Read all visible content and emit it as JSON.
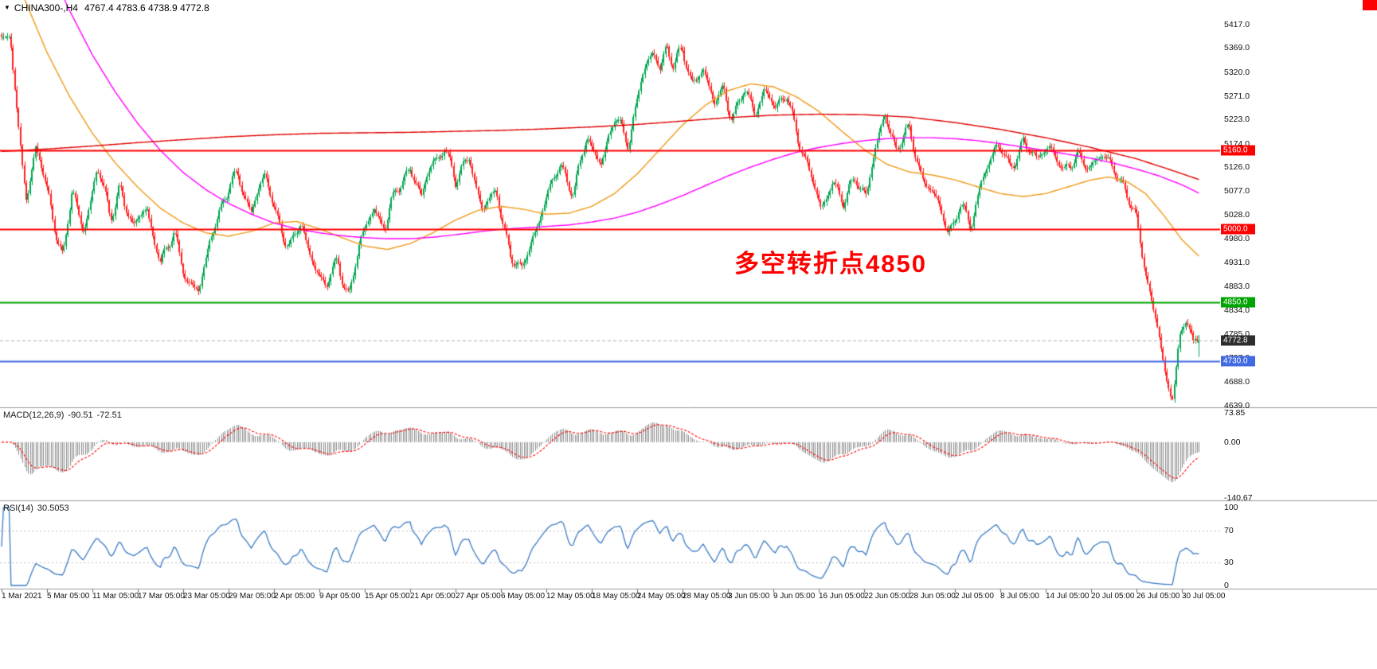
{
  "header": {
    "dropdown_icon": "▼",
    "symbol_period": "CHINA300-,H4",
    "ohlc_text": "4767.4 4783.6 4738.9 4772.8"
  },
  "annotation": {
    "text": "多空转折点4850",
    "color": "#ff0000"
  },
  "corner_marker_color": "#ff0000",
  "chart_data": {
    "type": "candlestick",
    "symbol": "CHINA300-",
    "timeframe": "H4",
    "current_ohlc": {
      "open": 4767.4,
      "high": 4783.6,
      "low": 4738.9,
      "close": 4772.8
    },
    "colors": {
      "up": "#00a651",
      "down": "#ff2020",
      "ma_fast": "#f09a18",
      "ma_mid": "#ff00ff",
      "ma_slow": "#e00000",
      "macd_hist": "#8a8a8a",
      "macd_signal": "#ff0000",
      "rsi_line": "#3b7cc4",
      "rsi_levels": "#c0c0c0",
      "separator": "#9b9b9b"
    },
    "ylim": [
      4636,
      5467
    ],
    "y_ticks": [
      5417.0,
      5369.0,
      5320.0,
      5271.0,
      5223.0,
      5174.0,
      5126.0,
      5077.0,
      5028.0,
      4980.0,
      4931.0,
      4883.0,
      4834.0,
      4785.0,
      4737.0,
      4688.0,
      4639.0
    ],
    "x_tick_labels": [
      "1 Mar 2021",
      "5 Mar 05:00",
      "11 Mar 05:00",
      "17 Mar 05:00",
      "23 Mar 05:00",
      "29 Mar 05:00",
      "2 Apr 05:00",
      "9 Apr 05:00",
      "15 Apr 05:00",
      "21 Apr 05:00",
      "27 Apr 05:00",
      "6 May 05:00",
      "12 May 05:00",
      "18 May 05:00",
      "24 May 05:00",
      "28 May 05:00",
      "3 Jun 05:00",
      "9 Jun 05:00",
      "16 Jun 05:00",
      "22 Jun 05:00",
      "28 Jun 05:00",
      "2 Jul 05:00",
      "8 Jul 05:00",
      "14 Jul 05:00",
      "20 Jul 05:00",
      "26 Jul 05:00",
      "30 Jul 05:00"
    ],
    "bars_per_tick": 24,
    "visible_bars": 634,
    "levels": [
      {
        "price": 5160.0,
        "label": "5160.0",
        "color": "#ff0000"
      },
      {
        "price": 5000.0,
        "label": "5000.0",
        "color": "#ff0000"
      },
      {
        "price": 4850.0,
        "label": "4850.0",
        "color": "#00a400"
      },
      {
        "price": 4730.0,
        "label": "4730.0",
        "color": "#4169e1"
      }
    ],
    "current_price": {
      "price": 4772.8,
      "label": "4772.8",
      "badge_bg": "#2e2e2e",
      "line_color": "#b0b0b0"
    },
    "price_path_anchors": [
      [
        0,
        5425
      ],
      [
        0.15,
        5435
      ],
      [
        0.35,
        5230
      ],
      [
        0.55,
        5060
      ],
      [
        0.75,
        5160
      ],
      [
        1.05,
        5065
      ],
      [
        1.35,
        4935
      ],
      [
        1.55,
        5075
      ],
      [
        1.8,
        5000
      ],
      [
        2.1,
        5120
      ],
      [
        2.4,
        5025
      ],
      [
        2.6,
        5090
      ],
      [
        2.9,
        4995
      ],
      [
        3.2,
        5050
      ],
      [
        3.5,
        4925
      ],
      [
        3.8,
        4990
      ],
      [
        4.1,
        4895
      ],
      [
        4.35,
        4862
      ],
      [
        4.6,
        4990
      ],
      [
        4.9,
        5060
      ],
      [
        5.2,
        5110
      ],
      [
        5.5,
        5040
      ],
      [
        5.8,
        5105
      ],
      [
        6.1,
        5020
      ],
      [
        6.35,
        4955
      ],
      [
        6.6,
        5010
      ],
      [
        6.9,
        4925
      ],
      [
        7.15,
        4875
      ],
      [
        7.4,
        4940
      ],
      [
        7.65,
        4862
      ],
      [
        7.9,
        4970
      ],
      [
        8.2,
        5050
      ],
      [
        8.45,
        5000
      ],
      [
        8.7,
        5080
      ],
      [
        9,
        5130
      ],
      [
        9.25,
        5060
      ],
      [
        9.5,
        5140
      ],
      [
        9.75,
        5170
      ],
      [
        10,
        5090
      ],
      [
        10.3,
        5155
      ],
      [
        10.6,
        5030
      ],
      [
        10.9,
        5080
      ],
      [
        11.2,
        4950
      ],
      [
        11.45,
        4905
      ],
      [
        11.7,
        4990
      ],
      [
        12,
        5060
      ],
      [
        12.3,
        5130
      ],
      [
        12.6,
        5080
      ],
      [
        12.9,
        5180
      ],
      [
        13.2,
        5140
      ],
      [
        13.5,
        5220
      ],
      [
        13.8,
        5180
      ],
      [
        14.1,
        5310
      ],
      [
        14.35,
        5355
      ],
      [
        14.5,
        5330
      ],
      [
        14.65,
        5385
      ],
      [
        14.8,
        5330
      ],
      [
        15,
        5360
      ],
      [
        15.2,
        5300
      ],
      [
        15.45,
        5330
      ],
      [
        15.7,
        5245
      ],
      [
        15.9,
        5295
      ],
      [
        16.1,
        5225
      ],
      [
        16.35,
        5280
      ],
      [
        16.6,
        5235
      ],
      [
        16.8,
        5295
      ],
      [
        17.05,
        5235
      ],
      [
        17.3,
        5280
      ],
      [
        17.55,
        5185
      ],
      [
        17.8,
        5105
      ],
      [
        18.05,
        5050
      ],
      [
        18.3,
        5095
      ],
      [
        18.55,
        5045
      ],
      [
        18.8,
        5115
      ],
      [
        19.05,
        5065
      ],
      [
        19.3,
        5180
      ],
      [
        19.45,
        5240
      ],
      [
        19.7,
        5165
      ],
      [
        20,
        5195
      ],
      [
        20.3,
        5105
      ],
      [
        20.6,
        5055
      ],
      [
        20.85,
        4990
      ],
      [
        21.1,
        5055
      ],
      [
        21.35,
        4995
      ],
      [
        21.6,
        5110
      ],
      [
        21.9,
        5170
      ],
      [
        22.2,
        5125
      ],
      [
        22.5,
        5180
      ],
      [
        22.8,
        5135
      ],
      [
        23.1,
        5180
      ],
      [
        23.4,
        5105
      ],
      [
        23.7,
        5155
      ],
      [
        24,
        5125
      ],
      [
        24.4,
        5150
      ],
      [
        24.7,
        5085
      ],
      [
        25,
        5015
      ],
      [
        25.2,
        4920
      ],
      [
        25.45,
        4800
      ],
      [
        25.65,
        4685
      ],
      [
        25.78,
        4655
      ],
      [
        25.95,
        4780
      ],
      [
        26.1,
        4828
      ],
      [
        26.25,
        4752
      ],
      [
        26.4,
        4772.8
      ]
    ],
    "moving_averages": [
      {
        "name": "ma-fast-orange",
        "color": "#f09a18",
        "anchors": [
          [
            0,
            5570
          ],
          [
            0.5,
            5470
          ],
          [
            1,
            5360
          ],
          [
            1.5,
            5270
          ],
          [
            2,
            5195
          ],
          [
            2.5,
            5135
          ],
          [
            3,
            5085
          ],
          [
            3.5,
            5042
          ],
          [
            4,
            5012
          ],
          [
            4.5,
            4992
          ],
          [
            5,
            4985
          ],
          [
            5.5,
            4995
          ],
          [
            6,
            5012
          ],
          [
            6.5,
            5015
          ],
          [
            7,
            5000
          ],
          [
            7.5,
            4982
          ],
          [
            8,
            4965
          ],
          [
            8.5,
            4958
          ],
          [
            9,
            4970
          ],
          [
            9.5,
            4992
          ],
          [
            10,
            5018
          ],
          [
            10.5,
            5038
          ],
          [
            11,
            5046
          ],
          [
            11.5,
            5040
          ],
          [
            12,
            5030
          ],
          [
            12.5,
            5032
          ],
          [
            13,
            5046
          ],
          [
            13.5,
            5072
          ],
          [
            14,
            5112
          ],
          [
            14.5,
            5162
          ],
          [
            15,
            5212
          ],
          [
            15.5,
            5252
          ],
          [
            16,
            5282
          ],
          [
            16.5,
            5296
          ],
          [
            17,
            5290
          ],
          [
            17.5,
            5270
          ],
          [
            18,
            5240
          ],
          [
            18.5,
            5200
          ],
          [
            19,
            5162
          ],
          [
            19.5,
            5132
          ],
          [
            20,
            5116
          ],
          [
            20.5,
            5110
          ],
          [
            21,
            5100
          ],
          [
            21.5,
            5086
          ],
          [
            22,
            5072
          ],
          [
            22.5,
            5066
          ],
          [
            23,
            5072
          ],
          [
            23.5,
            5086
          ],
          [
            24,
            5100
          ],
          [
            24.4,
            5106
          ],
          [
            24.8,
            5096
          ],
          [
            25.2,
            5072
          ],
          [
            25.6,
            5028
          ],
          [
            26,
            4978
          ],
          [
            26.4,
            4942
          ]
        ]
      },
      {
        "name": "ma-mid-magenta",
        "color": "#ff00ff",
        "anchors": [
          [
            0,
            5790
          ],
          [
            0.5,
            5660
          ],
          [
            1,
            5545
          ],
          [
            1.5,
            5445
          ],
          [
            2,
            5355
          ],
          [
            2.5,
            5280
          ],
          [
            3,
            5215
          ],
          [
            3.5,
            5160
          ],
          [
            4,
            5115
          ],
          [
            4.5,
            5080
          ],
          [
            5,
            5052
          ],
          [
            5.5,
            5030
          ],
          [
            6,
            5012
          ],
          [
            6.5,
            5000
          ],
          [
            7,
            4992
          ],
          [
            7.5,
            4986
          ],
          [
            8,
            4982
          ],
          [
            8.5,
            4980
          ],
          [
            9,
            4980
          ],
          [
            9.5,
            4983
          ],
          [
            10,
            4988
          ],
          [
            10.5,
            4994
          ],
          [
            11,
            4999
          ],
          [
            11.5,
            5002
          ],
          [
            12,
            5005
          ],
          [
            12.5,
            5008
          ],
          [
            13,
            5014
          ],
          [
            13.5,
            5022
          ],
          [
            14,
            5034
          ],
          [
            14.5,
            5050
          ],
          [
            15,
            5068
          ],
          [
            15.5,
            5088
          ],
          [
            16,
            5108
          ],
          [
            16.5,
            5126
          ],
          [
            17,
            5142
          ],
          [
            17.5,
            5156
          ],
          [
            18,
            5166
          ],
          [
            18.5,
            5174
          ],
          [
            19,
            5180
          ],
          [
            19.5,
            5184
          ],
          [
            20,
            5186
          ],
          [
            20.5,
            5186
          ],
          [
            21,
            5184
          ],
          [
            21.5,
            5180
          ],
          [
            22,
            5174
          ],
          [
            22.5,
            5167
          ],
          [
            23,
            5160
          ],
          [
            23.5,
            5152
          ],
          [
            24,
            5144
          ],
          [
            24.5,
            5134
          ],
          [
            25,
            5122
          ],
          [
            25.5,
            5108
          ],
          [
            26,
            5090
          ],
          [
            26.4,
            5072
          ]
        ]
      },
      {
        "name": "ma-slow-red",
        "color": "#e00000",
        "anchors": [
          [
            0,
            5158
          ],
          [
            1,
            5163
          ],
          [
            2,
            5169
          ],
          [
            3,
            5176
          ],
          [
            4,
            5182
          ],
          [
            5,
            5188
          ],
          [
            6,
            5192
          ],
          [
            7,
            5195
          ],
          [
            8,
            5196
          ],
          [
            9,
            5197
          ],
          [
            10,
            5199
          ],
          [
            11,
            5201
          ],
          [
            12,
            5204
          ],
          [
            13,
            5208
          ],
          [
            14,
            5213
          ],
          [
            15,
            5220
          ],
          [
            16,
            5227
          ],
          [
            17,
            5232
          ],
          [
            18,
            5234
          ],
          [
            19,
            5233
          ],
          [
            20,
            5228
          ],
          [
            21,
            5217
          ],
          [
            22,
            5203
          ],
          [
            23,
            5186
          ],
          [
            24,
            5166
          ],
          [
            25,
            5143
          ],
          [
            25.7,
            5122
          ],
          [
            26.4,
            5100
          ]
        ]
      }
    ],
    "macd": {
      "label": "MACD(12,26,9)",
      "macd_value_text": "-90.51",
      "signal_value_text": "-72.51",
      "macd_value": -90.51,
      "signal_value": -72.51,
      "scale_labels": [
        "73.85",
        "0.00",
        "-140.67"
      ],
      "scale_values": [
        73.85,
        0,
        -140.67
      ],
      "params": [
        12,
        26,
        9
      ]
    },
    "rsi": {
      "label": "RSI(14)",
      "value_text": "30.5053",
      "value": 30.5053,
      "scale_labels": [
        "100",
        "70",
        "30",
        "0"
      ],
      "scale_values": [
        100,
        70,
        30,
        0
      ],
      "levels": [
        70,
        30
      ],
      "period": 14
    }
  }
}
